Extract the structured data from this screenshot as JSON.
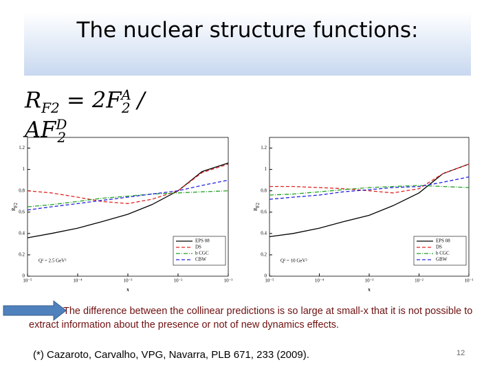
{
  "title": "The nuclear structure functions:",
  "formula": {
    "lhs": "R",
    "lhs_sub": "F2",
    "eq": "= 2F",
    "sup_a": "A",
    "sub_a": "2",
    "div": "/ AF",
    "sup_d": "D",
    "sub_d": "2"
  },
  "body": "The difference between the collinear predictions is so large at small-x that it is not possible to extract information about the presence or not of new dynamics effects.",
  "reference": "(*) Cazaroto, Carvalho, VPG, Navarra, PLB 671, 233 (2009).",
  "page_number": "12",
  "chart_data": [
    {
      "type": "line",
      "xlabel": "x",
      "ylabel": "R",
      "ylabel_subscript": "F2",
      "annotation": "Q² = 2.5 GeV²",
      "xscale": "log",
      "xlim": [
        1e-05,
        0.1
      ],
      "ylim": [
        0,
        1.3
      ],
      "xticks": [
        {
          "value": 1e-05,
          "label": "10⁻⁵"
        },
        {
          "value": 0.0001,
          "label": "10⁻⁴"
        },
        {
          "value": 0.001,
          "label": "10⁻³"
        },
        {
          "value": 0.01,
          "label": "10⁻²"
        },
        {
          "value": 0.1,
          "label": "10⁻¹"
        }
      ],
      "yticks": [
        0,
        0.2,
        0.4,
        0.6,
        0.8,
        1,
        1.2
      ],
      "legend": "lower right",
      "x": [
        1e-05,
        3e-05,
        0.0001,
        0.0003,
        0.001,
        0.003,
        0.01,
        0.03,
        0.1
      ],
      "series": [
        {
          "name": "EPS 08",
          "color": "#000000",
          "dash": "solid",
          "values": [
            0.36,
            0.4,
            0.45,
            0.51,
            0.58,
            0.67,
            0.8,
            0.98,
            1.06
          ]
        },
        {
          "name": "DS",
          "color": "#e02020",
          "dash": "dashed",
          "values": [
            0.8,
            0.78,
            0.74,
            0.7,
            0.68,
            0.72,
            0.8,
            0.97,
            1.05
          ]
        },
        {
          "name": "b CGC",
          "color": "#20a020",
          "dash": "dashdot",
          "values": [
            0.65,
            0.67,
            0.7,
            0.73,
            0.75,
            0.77,
            0.78,
            0.79,
            0.8
          ]
        },
        {
          "name": "CBW",
          "color": "#2020e0",
          "dash": "dashed",
          "values": [
            0.62,
            0.65,
            0.68,
            0.71,
            0.74,
            0.77,
            0.8,
            0.85,
            0.9
          ]
        }
      ]
    },
    {
      "type": "line",
      "xlabel": "x",
      "ylabel": "R",
      "ylabel_subscript": "F2",
      "annotation": "Q² = 10 GeV²",
      "xscale": "log",
      "xlim": [
        1e-05,
        0.1
      ],
      "ylim": [
        0,
        1.3
      ],
      "xticks": [
        {
          "value": 1e-05,
          "label": "10⁻⁵"
        },
        {
          "value": 0.0001,
          "label": "10⁻⁴"
        },
        {
          "value": 0.001,
          "label": "10⁻³"
        },
        {
          "value": 0.01,
          "label": "10⁻²"
        },
        {
          "value": 0.1,
          "label": "10⁻¹"
        }
      ],
      "yticks": [
        0,
        0.2,
        0.4,
        0.6,
        0.8,
        1,
        1.2
      ],
      "legend": "lower right",
      "x": [
        1e-05,
        3e-05,
        0.0001,
        0.0003,
        0.001,
        0.003,
        0.01,
        0.03,
        0.1
      ],
      "series": [
        {
          "name": "EPS 08",
          "color": "#000000",
          "dash": "solid",
          "values": [
            0.37,
            0.4,
            0.45,
            0.51,
            0.57,
            0.66,
            0.78,
            0.96,
            1.05
          ]
        },
        {
          "name": "DS",
          "color": "#e02020",
          "dash": "dashed",
          "values": [
            0.84,
            0.84,
            0.83,
            0.82,
            0.8,
            0.78,
            0.82,
            0.96,
            1.05
          ]
        },
        {
          "name": "b CGC",
          "color": "#20a020",
          "dash": "dashdot",
          "values": [
            0.76,
            0.77,
            0.79,
            0.81,
            0.83,
            0.84,
            0.85,
            0.84,
            0.83
          ]
        },
        {
          "name": "GBW",
          "color": "#2020e0",
          "dash": "dashed",
          "values": [
            0.72,
            0.74,
            0.76,
            0.79,
            0.81,
            0.83,
            0.84,
            0.88,
            0.93
          ]
        }
      ]
    }
  ]
}
